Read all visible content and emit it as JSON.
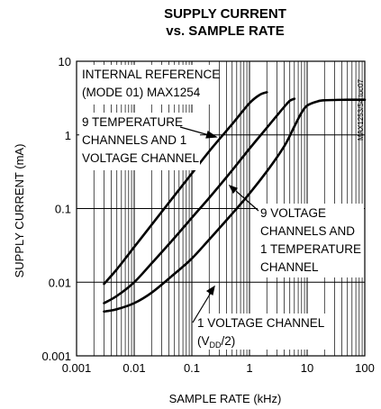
{
  "chart_data": {
    "type": "line",
    "title_lines": [
      "SUPPLY CURRENT",
      "vs. SAMPLE RATE"
    ],
    "xlabel": "SAMPLE RATE (kHz)",
    "ylabel": "SUPPLY CURRENT (mA)",
    "x_scale": "log",
    "y_scale": "log",
    "xlim": [
      0.001,
      100
    ],
    "ylim": [
      0.001,
      10
    ],
    "x_ticks": [
      0.001,
      0.01,
      0.1,
      1,
      10,
      100
    ],
    "x_tick_labels": [
      "0.001",
      "0.01",
      "0.1",
      "1",
      "10",
      "100"
    ],
    "y_ticks": [
      0.001,
      0.01,
      0.1,
      1,
      10
    ],
    "y_tick_labels": [
      "0.001",
      "0.01",
      "0.1",
      "1",
      "10"
    ],
    "grid": true,
    "figure_id": "MAX1253/54 toc07",
    "annotations": [
      {
        "id": "condition",
        "lines": [
          "INTERNAL REFERENCE",
          "(MODE 01) MAX1254"
        ]
      },
      {
        "id": "temp9",
        "lines": [
          "9 TEMPERATURE",
          "CHANNELS AND 1",
          "VOLTAGE CHANNEL"
        ]
      },
      {
        "id": "volt9",
        "lines": [
          "9 VOLTAGE",
          "CHANNELS AND",
          "1 TEMPERATURE",
          "CHANNEL"
        ]
      },
      {
        "id": "volt1",
        "line1": "1 VOLTAGE CHANNEL",
        "line2_pre": "(V",
        "line2_sub": "DD",
        "line2_post": "/2)"
      }
    ],
    "series": [
      {
        "x": [
          0.003,
          0.005,
          0.01,
          0.02,
          0.05,
          0.1,
          0.2,
          0.5,
          1,
          1.5,
          2
        ],
        "y": [
          0.0095,
          0.015,
          0.03,
          0.06,
          0.15,
          0.3,
          0.6,
          1.4,
          2.7,
          3.5,
          3.8
        ]
      },
      {
        "x": [
          0.003,
          0.005,
          0.01,
          0.02,
          0.05,
          0.1,
          0.2,
          0.5,
          1,
          2,
          4,
          5,
          6
        ],
        "y": [
          0.0052,
          0.0065,
          0.01,
          0.018,
          0.04,
          0.075,
          0.14,
          0.33,
          0.65,
          1.25,
          2.4,
          2.9,
          3.1
        ]
      },
      {
        "x": [
          0.003,
          0.005,
          0.01,
          0.02,
          0.05,
          0.1,
          0.2,
          0.5,
          1,
          2,
          4,
          6,
          8,
          10,
          15,
          20,
          50,
          100
        ],
        "y": [
          0.004,
          0.0043,
          0.0052,
          0.0072,
          0.013,
          0.021,
          0.038,
          0.085,
          0.16,
          0.32,
          0.7,
          1.3,
          2.0,
          2.5,
          2.85,
          2.95,
          3.0,
          3.0
        ]
      }
    ]
  }
}
